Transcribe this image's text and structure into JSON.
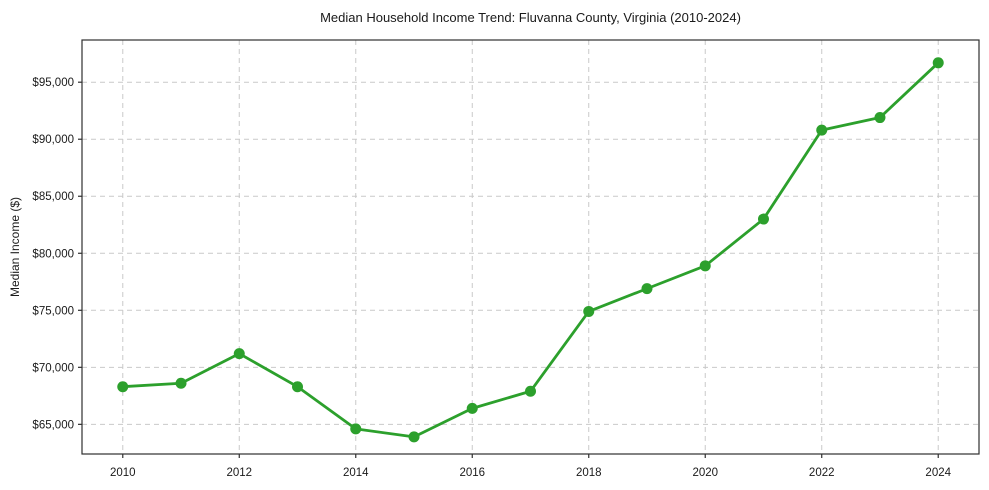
{
  "chart_data": {
    "type": "line",
    "title": "Median Household Income Trend: Fluvanna County, Virginia (2010-2024)",
    "xlabel": "",
    "ylabel": "Median Income ($)",
    "series_name": "Median household income",
    "x": [
      2010,
      2011,
      2012,
      2013,
      2014,
      2015,
      2016,
      2017,
      2018,
      2019,
      2020,
      2021,
      2022,
      2023,
      2024
    ],
    "values": [
      68300,
      68600,
      71200,
      68300,
      64600,
      63900,
      66400,
      67900,
      74900,
      76900,
      78900,
      83000,
      90800,
      91900,
      96700
    ],
    "xticks": [
      2010,
      2012,
      2014,
      2016,
      2018,
      2020,
      2022,
      2024
    ],
    "xtick_labels": [
      "2010",
      "2012",
      "2014",
      "2016",
      "2018",
      "2020",
      "2022",
      "2024"
    ],
    "ytick_values": [
      65000,
      70000,
      75000,
      80000,
      85000,
      90000,
      95000
    ],
    "ytick_labels": [
      "$65,000",
      "$70,000",
      "$75,000",
      "$80,000",
      "$85,000",
      "$90,000",
      "$95,000"
    ],
    "xlim": [
      2009.3,
      2024.7
    ],
    "ylim": [
      62400,
      98700
    ],
    "grid": true,
    "grid_style": "dashed",
    "legend_position": "none",
    "marker": "circle",
    "colors": {
      "line": "#2ca02c",
      "grid": "#c9c9c9",
      "spine": "#2f2f2f",
      "text": "#1a1a1a",
      "background": "#ffffff"
    }
  }
}
